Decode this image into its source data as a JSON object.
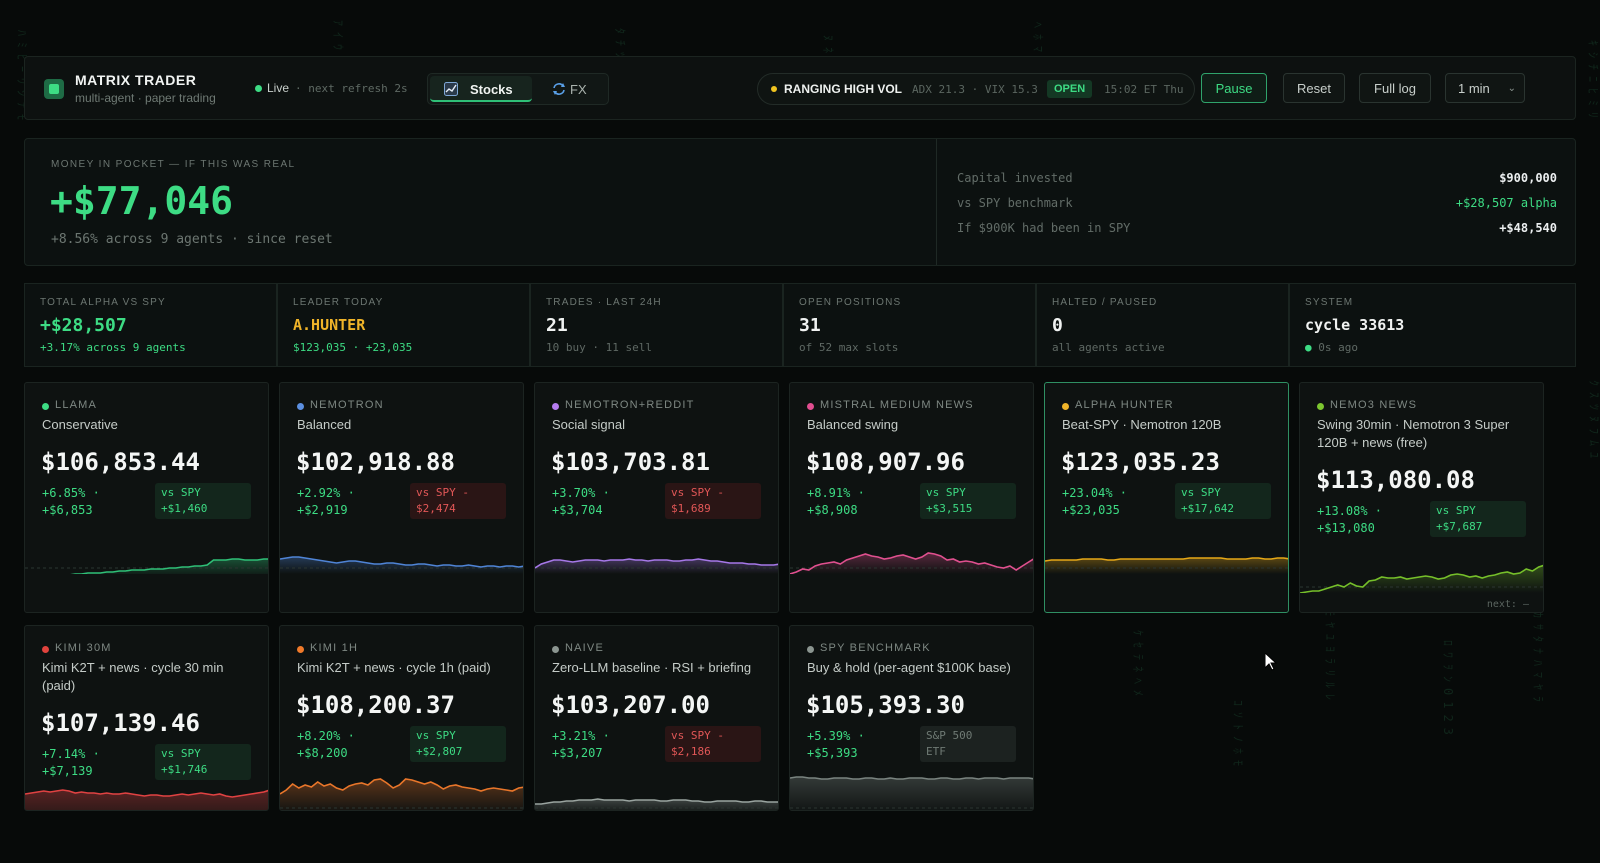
{
  "header": {
    "brand_title": "MATRIX TRADER",
    "brand_sub": "multi-agent · paper trading",
    "live_label": "Live",
    "refresh_text": "· next refresh 2s",
    "tabs": [
      {
        "label": "Stocks",
        "icon": "chart-icon",
        "active": true
      },
      {
        "label": "FX",
        "icon": "exchange-icon",
        "active": false
      }
    ],
    "regime": {
      "name": "RANGING HIGH VOL",
      "metrics": "ADX 21.3 · VIX 15.3",
      "status": "OPEN",
      "time": "15:02 ET Thu"
    },
    "buttons": {
      "pause": "Pause",
      "reset": "Reset",
      "full_log": "Full log"
    },
    "interval": {
      "selected": "1 min"
    }
  },
  "money": {
    "title": "MONEY IN POCKET — IF THIS WAS REAL",
    "amount": "+$77,046",
    "sub": "+8.56% across 9 agents · since reset",
    "rows": [
      {
        "label": "Capital invested",
        "value": "$900,000"
      },
      {
        "label": "vs SPY benchmark",
        "value": "+$28,507 alpha"
      },
      {
        "label": "If $900K had been in SPY",
        "value": "+$48,540"
      }
    ]
  },
  "stats": [
    {
      "label": "TOTAL ALPHA VS SPY",
      "value": "+$28,507",
      "sub": "+3.17% across 9 agents"
    },
    {
      "label": "LEADER TODAY",
      "value": "A.HUNTER",
      "sub": "$123,035 · +23,035"
    },
    {
      "label": "TRADES · LAST 24H",
      "value": "21",
      "sub": "10 buy · 11 sell"
    },
    {
      "label": "OPEN POSITIONS",
      "value": "31",
      "sub": "of 52 max slots"
    },
    {
      "label": "HALTED / PAUSED",
      "value": "0",
      "sub": "all agents active"
    },
    {
      "label": "SYSTEM",
      "value": "cycle 33613",
      "sub_dot": "●",
      "sub": "0s ago"
    }
  ],
  "agents": [
    {
      "name": "LLAMA",
      "strategy": "Conservative",
      "value": "$106,853.44",
      "ret_pct": "+6.85% ·",
      "ret_abs": "+$6,853",
      "vs_label": "vs SPY",
      "vs_value": "+$1,460",
      "vs_tone": "green",
      "color": "#3ddc84",
      "spark_color": "#2fbf77",
      "spark": [
        52,
        52,
        51,
        51,
        50,
        50,
        49,
        49,
        48,
        48,
        47,
        47,
        47,
        46,
        46,
        45,
        45,
        44,
        44,
        44,
        43,
        43,
        43,
        42,
        42,
        41,
        41,
        40,
        40,
        39,
        34,
        34,
        34,
        33,
        33,
        34,
        34,
        34,
        33,
        33
      ]
    },
    {
      "name": "NEMOTRON",
      "strategy": "Balanced",
      "value": "$102,918.88",
      "ret_pct": "+2.92% ·",
      "ret_abs": "+$2,919",
      "vs_label": "vs SPY -",
      "vs_value": "$2,474",
      "vs_tone": "red",
      "color": "#5b8fe0",
      "spark_color": "#4f84d6",
      "spark": [
        33,
        32,
        31,
        31,
        32,
        33,
        34,
        35,
        36,
        37,
        36,
        35,
        35,
        36,
        37,
        38,
        38,
        37,
        37,
        38,
        39,
        39,
        38,
        38,
        39,
        40,
        39,
        39,
        40,
        40,
        39,
        40,
        41,
        40,
        40,
        41,
        40,
        40,
        41,
        40
      ]
    },
    {
      "name": "NEMOTRON+REDDIT",
      "strategy": "Social signal",
      "value": "$103,703.81",
      "ret_pct": "+3.70% ·",
      "ret_abs": "+$3,704",
      "vs_label": "vs SPY -",
      "vs_value": "$1,689",
      "vs_tone": "red",
      "color": "#b57cf0",
      "spark_color": "#a678e8",
      "spark": [
        42,
        38,
        36,
        34,
        34,
        35,
        36,
        35,
        34,
        34,
        34,
        35,
        34,
        34,
        34,
        33,
        34,
        34,
        35,
        34,
        34,
        34,
        35,
        35,
        34,
        34,
        33,
        34,
        35,
        35,
        36,
        37,
        37,
        37,
        38,
        38,
        39,
        39,
        39,
        38
      ]
    },
    {
      "name": "MISTRAL MEDIUM NEWS",
      "strategy": "Balanced swing",
      "value": "$108,907.96",
      "ret_pct": "+8.91% ·",
      "ret_abs": "+$8,908",
      "vs_label": "vs SPY",
      "vs_value": "+$3,515",
      "vs_tone": "green",
      "color": "#e04d8f",
      "spark_color": "#e0508f",
      "spark": [
        48,
        46,
        43,
        44,
        40,
        38,
        37,
        36,
        38,
        34,
        32,
        30,
        28,
        30,
        31,
        33,
        32,
        30,
        29,
        31,
        33,
        31,
        27,
        28,
        30,
        34,
        33,
        36,
        35,
        36,
        38,
        37,
        39,
        41,
        42,
        40,
        44,
        40,
        36,
        32
      ]
    },
    {
      "name": "ALPHA HUNTER",
      "strategy": "Beat-SPY · Nemotron 120B",
      "value": "$123,035.23",
      "ret_pct": "+23.04% ·",
      "ret_abs": "+$23,035",
      "vs_label": "vs SPY",
      "vs_value": "+$17,642",
      "vs_tone": "green",
      "color": "#f0b429",
      "spark_color": "#e6a817",
      "spark": [
        35,
        34,
        34,
        34,
        34,
        34,
        33,
        33,
        33,
        33,
        34,
        34,
        33,
        33,
        33,
        33,
        33,
        33,
        33,
        33,
        33,
        33,
        33,
        32,
        32,
        32,
        32,
        32,
        32,
        33,
        33,
        33,
        33,
        32,
        32,
        33,
        33,
        32,
        32,
        33
      ]
    },
    {
      "name": "NEMO3 NEWS",
      "strategy": "Swing 30min · Nemotron 3 Super 120B + news (free)",
      "value": "$113,080.08",
      "ret_pct": "+13.08% ·",
      "ret_abs": "+$13,080",
      "vs_label": "vs SPY",
      "vs_value": "+$7,687",
      "vs_tone": "green",
      "color": "#7cc62f",
      "spark_color": "#76c02a",
      "next_label": "next: —",
      "spark": [
        48,
        47,
        46,
        46,
        44,
        42,
        40,
        42,
        38,
        41,
        42,
        36,
        35,
        32,
        33,
        33,
        32,
        34,
        33,
        32,
        31,
        32,
        34,
        33,
        30,
        29,
        30,
        32,
        31,
        33,
        31,
        30,
        28,
        27,
        29,
        28,
        24,
        26,
        22,
        20
      ]
    },
    {
      "name": "KIMI 30M",
      "strategy": "Kimi K2T + news · cycle 30 min (paid)",
      "value": "$107,139.46",
      "ret_pct": "+7.14% ·",
      "ret_abs": "+$7,139",
      "vs_label": "vs SPY",
      "vs_value": "+$1,746",
      "vs_tone": "green",
      "color": "#e0433d",
      "spark_color": "#e04242",
      "spark": [
        10,
        9,
        8,
        7,
        8,
        7,
        6,
        7,
        9,
        8,
        9,
        9,
        10,
        9,
        10,
        10,
        9,
        10,
        11,
        12,
        11,
        11,
        12,
        12,
        11,
        10,
        11,
        10,
        9,
        10,
        11,
        10,
        12,
        13,
        12,
        11,
        10,
        9,
        8,
        6
      ]
    },
    {
      "name": "KIMI 1H",
      "strategy": "Kimi K2T + news · cycle 1h (paid)",
      "value": "$108,200.37",
      "ret_pct": "+8.20% ·",
      "ret_abs": "+$8,200",
      "vs_label": "vs SPY",
      "vs_value": "+$2,807",
      "vs_tone": "green",
      "color": "#f07a2a",
      "spark_color": "#e9762a",
      "spark": [
        28,
        24,
        18,
        22,
        19,
        21,
        16,
        20,
        18,
        22,
        24,
        20,
        18,
        17,
        19,
        14,
        13,
        17,
        22,
        19,
        13,
        14,
        16,
        18,
        16,
        19,
        23,
        20,
        19,
        21,
        22,
        23,
        25,
        23,
        22,
        23,
        24,
        25,
        22,
        21
      ]
    },
    {
      "name": "NAIVE",
      "strategy": "Zero-LLM baseline · RSI + briefing",
      "value": "$103,207.00",
      "ret_pct": "+3.21% ·",
      "ret_abs": "+$3,207",
      "vs_label": "vs SPY -",
      "vs_value": "$2,186",
      "vs_tone": "red",
      "color": "#8b9590",
      "spark_color": "#9aa4a0",
      "spark": [
        38,
        38,
        37,
        36,
        36,
        35,
        35,
        34,
        34,
        34,
        33,
        34,
        34,
        34,
        34,
        35,
        34,
        34,
        34,
        34,
        35,
        35,
        34,
        34,
        34,
        35,
        35,
        36,
        36,
        35,
        35,
        35,
        35,
        36,
        36,
        35,
        35,
        36,
        36,
        36
      ]
    },
    {
      "name": "SPY BENCHMARK",
      "strategy": "Buy & hold (per-agent $100K base)",
      "value": "$105,393.30",
      "ret_pct": "+5.39% ·",
      "ret_abs": "+$5,393",
      "vs_label": "S&P 500",
      "vs_value": "ETF",
      "vs_tone": "gray",
      "color": "#8b9590",
      "spark_color": "#7a8480",
      "spark": [
        12,
        11,
        11,
        12,
        12,
        13,
        13,
        12,
        12,
        12,
        13,
        13,
        12,
        12,
        13,
        13,
        12,
        13,
        13,
        12,
        12,
        12,
        13,
        13,
        12,
        12,
        13,
        13,
        12,
        12,
        13,
        12,
        12,
        12,
        13,
        12,
        12,
        12,
        12,
        13
      ]
    }
  ]
}
